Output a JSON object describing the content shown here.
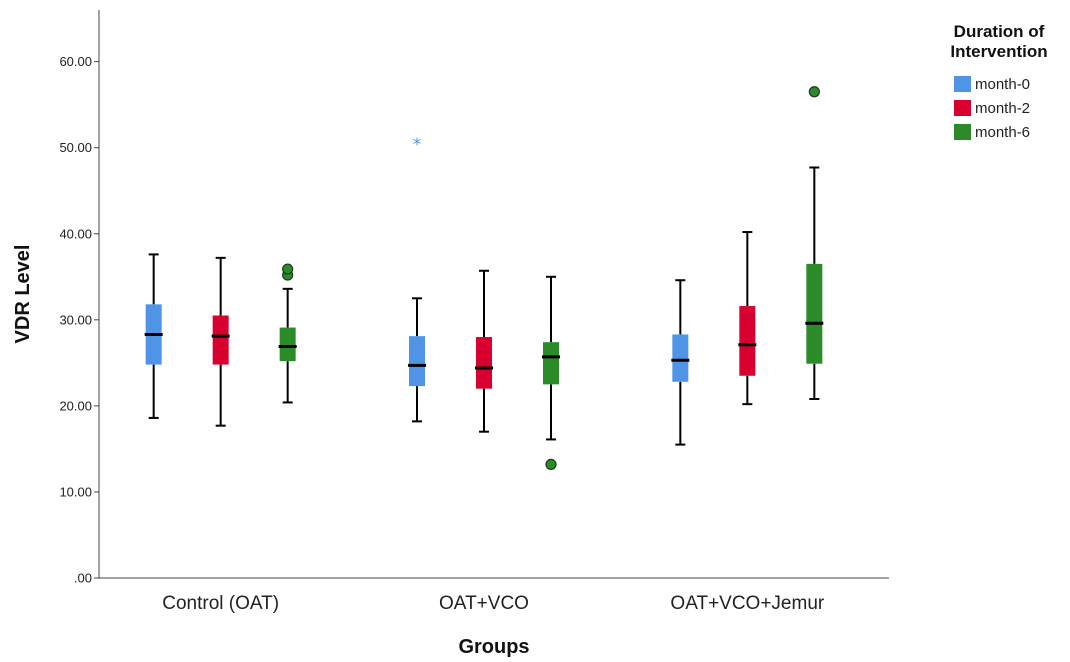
{
  "chart_data": {
    "type": "boxplot",
    "xlabel": "Groups",
    "ylabel": "VDR Level",
    "ylim": [
      0,
      66
    ],
    "yticks": [
      0,
      10,
      20,
      30,
      40,
      50,
      60
    ],
    "ytick_labels": [
      ".00",
      "10.00",
      "20.00",
      "30.00",
      "40.00",
      "50.00",
      "60.00"
    ],
    "categories": [
      "Control (OAT)",
      "OAT+VCO",
      "OAT+VCO+Jemur"
    ],
    "legend": {
      "title_lines": [
        "Duration of",
        "Intervention"
      ],
      "placement": "top-right"
    },
    "series": [
      {
        "name": "month-0",
        "color": "#4f94e6",
        "boxes": [
          {
            "min": 18.6,
            "q1": 24.8,
            "median": 28.3,
            "q3": 31.8,
            "max": 37.6,
            "outliers": [],
            "extremes": []
          },
          {
            "min": 18.2,
            "q1": 22.3,
            "median": 24.7,
            "q3": 28.1,
            "max": 32.5,
            "outliers": [],
            "extremes": [
              50.8
            ]
          },
          {
            "min": 15.5,
            "q1": 22.8,
            "median": 25.3,
            "q3": 28.3,
            "max": 34.6,
            "outliers": [],
            "extremes": []
          }
        ]
      },
      {
        "name": "month-2",
        "color": "#d8002f",
        "boxes": [
          {
            "min": 17.7,
            "q1": 24.8,
            "median": 28.1,
            "q3": 30.5,
            "max": 37.2,
            "outliers": [],
            "extremes": []
          },
          {
            "min": 17.0,
            "q1": 22.0,
            "median": 24.4,
            "q3": 28.0,
            "max": 35.7,
            "outliers": [],
            "extremes": []
          },
          {
            "min": 20.2,
            "q1": 23.5,
            "median": 27.1,
            "q3": 31.6,
            "max": 40.2,
            "outliers": [],
            "extremes": []
          }
        ]
      },
      {
        "name": "month-6",
        "color": "#2a8b28",
        "boxes": [
          {
            "min": 20.4,
            "q1": 25.2,
            "median": 26.9,
            "q3": 29.1,
            "max": 33.6,
            "outliers": [
              35.2,
              35.9
            ],
            "extremes": []
          },
          {
            "min": 16.1,
            "q1": 22.5,
            "median": 25.7,
            "q3": 27.4,
            "max": 35.0,
            "outliers": [
              13.2
            ],
            "extremes": []
          },
          {
            "min": 20.8,
            "q1": 24.9,
            "median": 29.6,
            "q3": 36.5,
            "max": 47.7,
            "outliers": [
              56.5
            ],
            "extremes": []
          }
        ]
      }
    ]
  }
}
